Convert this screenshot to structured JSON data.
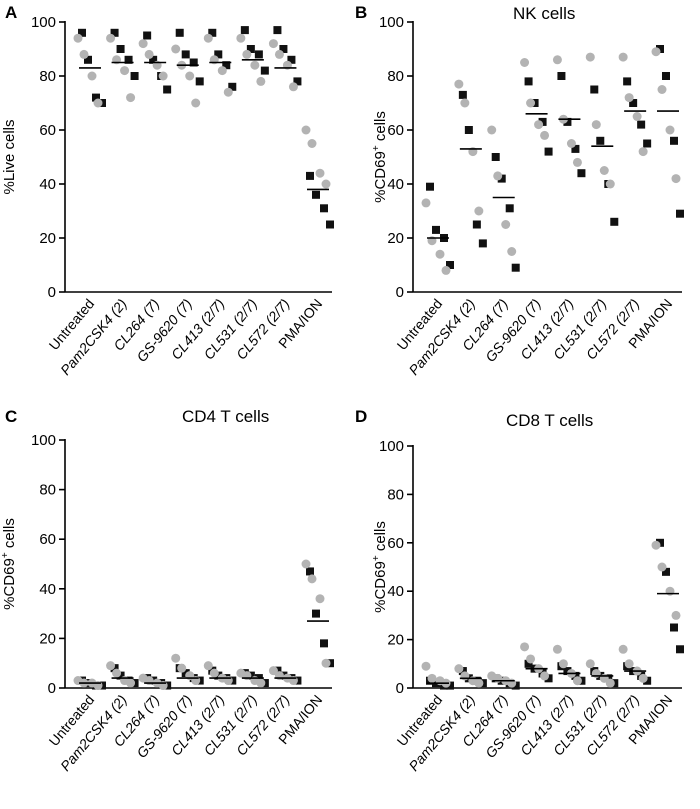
{
  "colors": {
    "black_points": "#111111",
    "gray_points": "#b3b3b3",
    "axis": "#000000"
  },
  "categories": [
    "Untreated",
    "Pam2CSK4 (2)",
    "CL264 (7)",
    "GS-9620 (7)",
    "CL413 (2/7)",
    "CL531 (2/7)",
    "CL572 (2/7)",
    "PMA/ION"
  ],
  "chart_data": [
    {
      "type": "scatter",
      "panel": "A",
      "title": "",
      "ylabel": "%Live cells",
      "ylim": [
        0,
        100
      ],
      "yticks": [
        0,
        20,
        40,
        60,
        80,
        100
      ],
      "categories": [
        "Untreated",
        "Pam2CSK4 (2)",
        "CL264 (7)",
        "GS-9620 (7)",
        "CL413 (2/7)",
        "CL531 (2/7)",
        "CL572 (2/7)",
        "PMA/ION"
      ],
      "medians": [
        83,
        85,
        85,
        84,
        85,
        86,
        83,
        38
      ],
      "series": [
        {
          "marker": "square",
          "values": [
            [
              96,
              86,
              72,
              70
            ],
            [
              96,
              90,
              86,
              80
            ],
            [
              95,
              86,
              80,
              75
            ],
            [
              96,
              88,
              85,
              78
            ],
            [
              96,
              88,
              84,
              76
            ],
            [
              97,
              90,
              88,
              82
            ],
            [
              97,
              90,
              86,
              78
            ],
            [
              43,
              36,
              31,
              25
            ]
          ]
        },
        {
          "marker": "circle",
          "values": [
            [
              94,
              88,
              80,
              70
            ],
            [
              94,
              86,
              82,
              72
            ],
            [
              92,
              88,
              84,
              80
            ],
            [
              90,
              84,
              80,
              70
            ],
            [
              94,
              86,
              82,
              74
            ],
            [
              94,
              88,
              84,
              78
            ],
            [
              92,
              88,
              84,
              76
            ],
            [
              60,
              55,
              44,
              40
            ]
          ]
        }
      ]
    },
    {
      "type": "scatter",
      "panel": "B",
      "title": "NK cells",
      "ylabel": "%CD69+ cells",
      "ylim": [
        0,
        100
      ],
      "yticks": [
        0,
        20,
        40,
        60,
        80,
        100
      ],
      "categories": [
        "Untreated",
        "Pam2CSK4 (2)",
        "CL264 (7)",
        "GS-9620 (7)",
        "CL413 (2/7)",
        "CL531 (2/7)",
        "CL572 (2/7)",
        "PMA/ION"
      ],
      "medians": [
        20,
        53,
        35,
        66,
        64,
        54,
        67,
        67
      ],
      "series": [
        {
          "marker": "square",
          "values": [
            [
              39,
              23,
              20,
              10
            ],
            [
              73,
              60,
              25,
              18
            ],
            [
              50,
              42,
              31,
              9
            ],
            [
              78,
              70,
              63,
              52
            ],
            [
              80,
              63,
              53,
              44
            ],
            [
              75,
              56,
              40,
              26
            ],
            [
              78,
              70,
              62,
              55
            ],
            [
              90,
              80,
              56,
              29
            ]
          ]
        },
        {
          "marker": "circle",
          "values": [
            [
              33,
              19,
              14,
              8
            ],
            [
              77,
              70,
              52,
              30
            ],
            [
              60,
              43,
              25,
              15
            ],
            [
              85,
              70,
              62,
              58
            ],
            [
              86,
              64,
              55,
              48
            ],
            [
              87,
              62,
              45,
              40
            ],
            [
              87,
              72,
              65,
              52
            ],
            [
              89,
              75,
              60,
              42
            ]
          ]
        }
      ]
    },
    {
      "type": "scatter",
      "panel": "C",
      "title": "CD4 T cells",
      "ylabel": "%CD69+ cells",
      "ylim": [
        0,
        100
      ],
      "yticks": [
        0,
        20,
        40,
        60,
        80,
        100
      ],
      "categories": [
        "Untreated",
        "Pam2CSK4 (2)",
        "CL264 (7)",
        "GS-9620 (7)",
        "CL413 (2/7)",
        "CL531 (2/7)",
        "CL572 (2/7)",
        "PMA/ION"
      ],
      "medians": [
        2,
        4,
        2,
        4,
        4,
        4,
        4,
        27
      ],
      "series": [
        {
          "marker": "square",
          "values": [
            [
              3,
              2,
              1,
              1
            ],
            [
              8,
              5,
              3,
              2
            ],
            [
              4,
              3,
              2,
              1
            ],
            [
              8,
              6,
              4,
              3
            ],
            [
              7,
              5,
              4,
              3
            ],
            [
              6,
              5,
              4,
              2
            ],
            [
              7,
              5,
              4,
              3
            ],
            [
              47,
              30,
              18,
              10
            ]
          ]
        },
        {
          "marker": "circle",
          "values": [
            [
              3,
              2,
              2,
              1
            ],
            [
              9,
              6,
              3,
              2
            ],
            [
              4,
              3,
              2,
              1
            ],
            [
              12,
              8,
              5,
              3
            ],
            [
              9,
              6,
              4,
              3
            ],
            [
              6,
              5,
              3,
              2
            ],
            [
              7,
              5,
              4,
              3
            ],
            [
              50,
              44,
              36,
              10
            ]
          ]
        }
      ]
    },
    {
      "type": "scatter",
      "panel": "D",
      "title": "CD8 T cells",
      "ylabel": "%CD69+ cells",
      "ylim": [
        0,
        100
      ],
      "yticks": [
        0,
        20,
        40,
        60,
        80,
        100
      ],
      "categories": [
        "Untreated",
        "Pam2CSK4 (2)",
        "CL264 (7)",
        "GS-9620 (7)",
        "CL413 (2/7)",
        "CL531 (2/7)",
        "CL572 (2/7)",
        "PMA/ION"
      ],
      "medians": [
        2,
        4,
        3,
        8,
        6,
        5,
        7,
        39
      ],
      "series": [
        {
          "marker": "square",
          "values": [
            [
              3,
              2,
              1,
              1
            ],
            [
              7,
              4,
              3,
              2
            ],
            [
              4,
              3,
              2,
              1
            ],
            [
              10,
              8,
              6,
              4
            ],
            [
              9,
              7,
              5,
              3
            ],
            [
              7,
              5,
              4,
              2
            ],
            [
              9,
              7,
              5,
              3
            ],
            [
              60,
              48,
              25,
              16
            ]
          ]
        },
        {
          "marker": "circle",
          "values": [
            [
              9,
              4,
              3,
              2
            ],
            [
              8,
              5,
              3,
              2
            ],
            [
              5,
              4,
              3,
              2
            ],
            [
              17,
              12,
              8,
              5
            ],
            [
              16,
              10,
              6,
              3
            ],
            [
              10,
              6,
              4,
              2
            ],
            [
              16,
              10,
              7,
              4
            ],
            [
              59,
              50,
              40,
              30
            ]
          ]
        }
      ]
    }
  ]
}
